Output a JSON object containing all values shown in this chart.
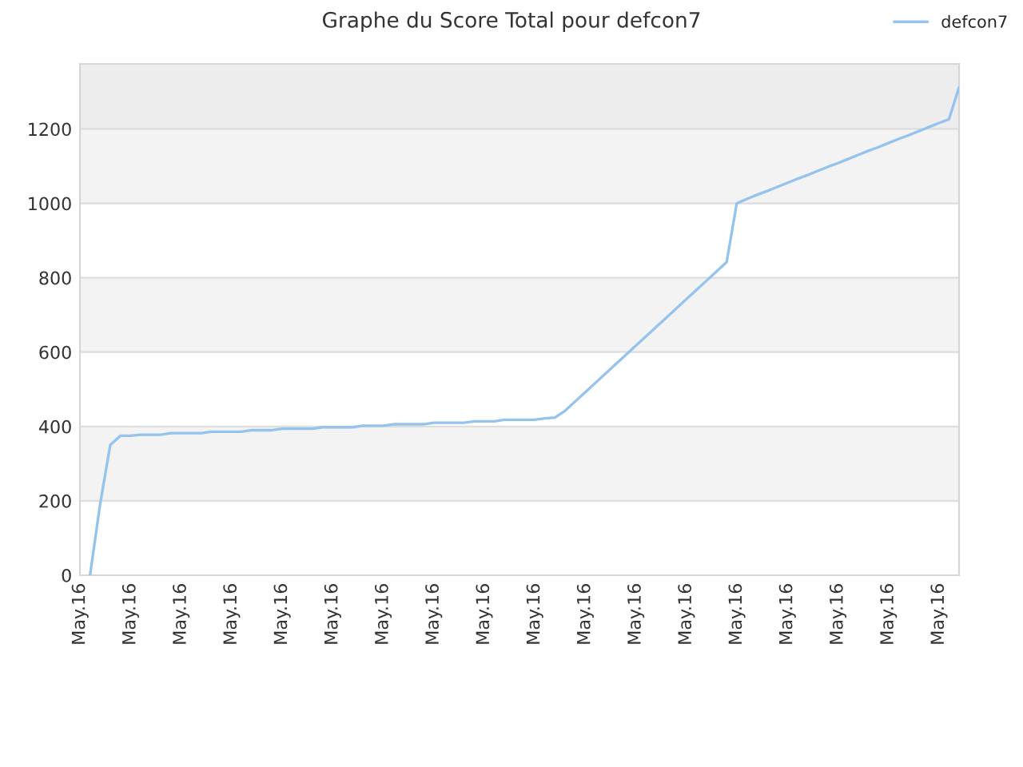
{
  "chart_data": {
    "type": "line",
    "title": "Graphe du Score Total pour defcon7",
    "categories": [
      "May.16",
      null,
      null,
      null,
      null,
      "May.16",
      null,
      null,
      null,
      null,
      "May.16",
      null,
      null,
      null,
      null,
      "May.16",
      null,
      null,
      null,
      null,
      "May.16",
      null,
      null,
      null,
      null,
      "May.16",
      null,
      null,
      null,
      null,
      "May.16",
      null,
      null,
      null,
      null,
      "May.16",
      null,
      null,
      null,
      null,
      "May.16",
      null,
      null,
      null,
      null,
      "May.16",
      null,
      null,
      null,
      null,
      "May.16",
      null,
      null,
      null,
      null,
      "May.16",
      null,
      null,
      null,
      null,
      "May.16",
      null,
      null,
      null,
      null,
      "May.16",
      null,
      null,
      null,
      null,
      "May.16",
      null,
      null,
      null,
      null,
      "May.16",
      null,
      null,
      null,
      null,
      "May.16",
      null,
      null,
      null,
      null,
      "May.16",
      null,
      null
    ],
    "series": [
      {
        "name": "defcon7",
        "color": "#96c3ee",
        "values": [
          null,
          0,
          191,
          350,
          375,
          375,
          378,
          378,
          378,
          382,
          382,
          382,
          382,
          386,
          386,
          386,
          386,
          390,
          390,
          390,
          394,
          394,
          394,
          394,
          398,
          398,
          398,
          398,
          402,
          402,
          402,
          406,
          406,
          406,
          406,
          410,
          410,
          410,
          410,
          414,
          414,
          414,
          418,
          418,
          418,
          418,
          422,
          424,
          442,
          467,
          492,
          517,
          542,
          567,
          592,
          617,
          642,
          667,
          692,
          717,
          742,
          767,
          792,
          817,
          842,
          1000,
          1012,
          1023,
          1033,
          1044,
          1055,
          1066,
          1076,
          1087,
          1098,
          1108,
          1119,
          1130,
          1141,
          1151,
          1162,
          1173,
          1183,
          1194,
          1205,
          1216,
          1226,
          1312
        ]
      }
    ],
    "ylim": [
      0,
      1375
    ],
    "yticks": [
      0,
      200,
      400,
      600,
      800,
      1000,
      1200
    ],
    "bands": [
      {
        "axis": "y",
        "from": 200,
        "to": 400,
        "color": "#f3f3f3"
      },
      {
        "axis": "y",
        "from": 600,
        "to": 800,
        "color": "#f3f3f3"
      },
      {
        "axis": "y",
        "from": 1000,
        "to": 1200,
        "color": "#f3f3f3"
      },
      {
        "axis": "y",
        "from": 1200,
        "to": 1375,
        "color": "#ededed"
      }
    ],
    "grid": "y",
    "legend": "top right",
    "marker": "none",
    "line_style": "solid"
  }
}
